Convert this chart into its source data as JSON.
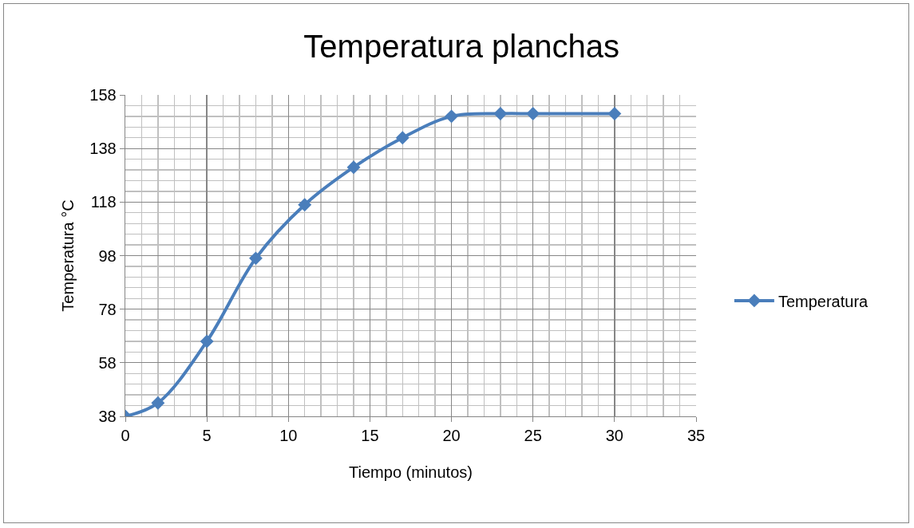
{
  "chart_data": {
    "type": "line",
    "title": "Temperatura planchas",
    "xlabel": "Tiempo (minutos)",
    "ylabel": "Temperatura °C",
    "x": [
      0,
      2,
      5,
      8,
      11,
      14,
      17,
      20,
      23,
      25,
      30
    ],
    "series": [
      {
        "name": "Temperatura",
        "color": "#4a7ebb",
        "values": [
          38,
          43,
          66,
          97,
          117,
          131,
          142,
          150,
          151,
          151,
          151
        ]
      }
    ],
    "xlim": [
      0,
      35
    ],
    "xticks": [
      0,
      5,
      10,
      15,
      20,
      25,
      30,
      35
    ],
    "ylim": [
      38,
      158
    ],
    "yticks": [
      38,
      58,
      78,
      98,
      118,
      138,
      158
    ],
    "grid": true,
    "legend": "right",
    "marker": "diamond",
    "line_style": "solid"
  }
}
